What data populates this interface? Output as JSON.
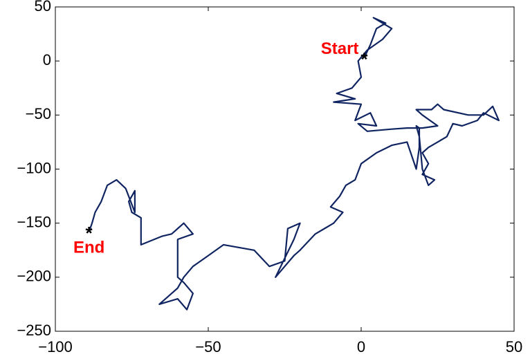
{
  "chart_data": {
    "type": "line",
    "series": [
      {
        "color": "#0f2461",
        "x": [
          1,
          3,
          5,
          8,
          4,
          10,
          7,
          2,
          -1,
          0,
          -3,
          -8,
          -2,
          -9,
          0,
          -2,
          3,
          5,
          -1,
          2,
          10,
          15,
          20,
          25,
          20,
          18,
          23,
          25,
          27,
          35,
          40,
          43,
          45,
          40,
          38,
          33,
          30,
          28,
          25,
          22,
          20,
          22,
          20,
          24,
          22,
          20,
          19,
          18,
          19,
          19,
          18,
          15,
          10,
          5,
          0,
          -2,
          -5,
          -7,
          -10,
          -6,
          -9,
          -12,
          -15,
          -20,
          -22,
          -25,
          -28,
          -22,
          -20,
          -24,
          -25,
          -30,
          -35,
          -45,
          -50,
          -55,
          -58,
          -60,
          -62,
          -66,
          -60,
          -57,
          -55,
          -58,
          -60,
          -60,
          -55,
          -58,
          -62,
          -65,
          -72,
          -72,
          -75,
          -76,
          -74,
          -74,
          -77,
          -80,
          -83,
          -85,
          -87,
          -88,
          -89
        ],
        "values": [
          3,
          15,
          30,
          35,
          40,
          30,
          20,
          10,
          0,
          -15,
          -25,
          -30,
          -35,
          -38,
          -40,
          -55,
          -48,
          -60,
          -58,
          -65,
          -63,
          -62,
          -62,
          -60,
          -50,
          -45,
          -45,
          -40,
          -45,
          -50,
          -50,
          -42,
          -55,
          -48,
          -55,
          -60,
          -58,
          -70,
          -75,
          -80,
          -85,
          -95,
          -105,
          -110,
          -115,
          -100,
          -70,
          -60,
          -62,
          -80,
          -100,
          -75,
          -78,
          -85,
          -95,
          -110,
          -115,
          -125,
          -135,
          -140,
          -150,
          -155,
          -160,
          -175,
          -180,
          -190,
          -200,
          -165,
          -150,
          -155,
          -185,
          -190,
          -175,
          -170,
          -180,
          -190,
          -200,
          -210,
          -215,
          -225,
          -220,
          -230,
          -215,
          -205,
          -200,
          -165,
          -160,
          -150,
          -160,
          -162,
          -170,
          -145,
          -140,
          -130,
          -120,
          -140,
          -118,
          -110,
          -115,
          -130,
          -140,
          -150,
          -158
        ]
      }
    ],
    "annotations": [
      {
        "text": "Start",
        "x": 1,
        "y": 3,
        "color": "#ff0000"
      },
      {
        "text": "End",
        "x": -89,
        "y": -158,
        "color": "#ff0000"
      }
    ],
    "xlim": [
      -100,
      50
    ],
    "ylim": [
      -250,
      50
    ],
    "xticks": [
      {
        "value": -100,
        "label": "−100"
      },
      {
        "value": -50,
        "label": "−50"
      },
      0,
      50
    ],
    "yticks": [
      {
        "value": -250,
        "label": "−250"
      },
      {
        "value": -200,
        "label": "−200"
      },
      {
        "value": -150,
        "label": "−150"
      },
      {
        "value": -100,
        "label": "−100"
      },
      {
        "value": -50,
        "label": "−50"
      },
      0,
      50
    ],
    "grid": false
  }
}
